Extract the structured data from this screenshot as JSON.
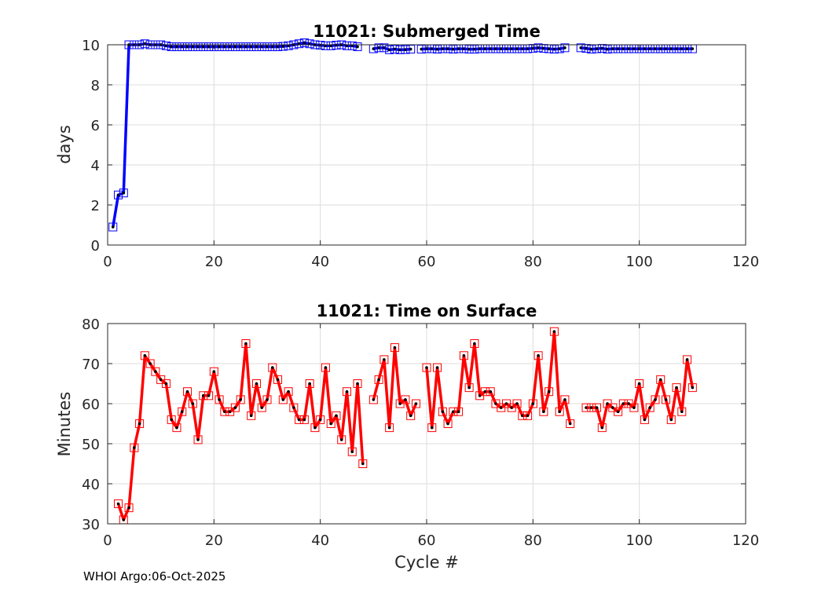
{
  "chart_data": [
    {
      "type": "line",
      "title": "11021: Submerged Time",
      "xlabel": "",
      "ylabel": "days",
      "xlim": [
        0,
        120
      ],
      "ylim": [
        0,
        10
      ],
      "xticks": [
        0,
        20,
        40,
        60,
        80,
        100,
        120
      ],
      "yticks": [
        0,
        2,
        4,
        6,
        8,
        10
      ],
      "grid": true,
      "color": "#0000ff",
      "marker": "square",
      "series": [
        {
          "name": "Submerged Time",
          "x": [
            1,
            2,
            3,
            4,
            5,
            6,
            7,
            8,
            9,
            10,
            11,
            12,
            13,
            14,
            15,
            16,
            17,
            18,
            19,
            20,
            21,
            22,
            23,
            24,
            25,
            26,
            27,
            28,
            29,
            30,
            31,
            32,
            33,
            34,
            35,
            36,
            37,
            38,
            39,
            40,
            41,
            42,
            43,
            44,
            45,
            46,
            47,
            50,
            51,
            52,
            53,
            54,
            55,
            56,
            57,
            59,
            60,
            61,
            62,
            63,
            64,
            65,
            66,
            67,
            68,
            69,
            70,
            71,
            72,
            73,
            74,
            75,
            76,
            77,
            78,
            79,
            80,
            81,
            82,
            83,
            84,
            85,
            86,
            89,
            90,
            91,
            92,
            93,
            94,
            95,
            96,
            97,
            98,
            99,
            100,
            101,
            102,
            103,
            104,
            105,
            106,
            107,
            108,
            109,
            110
          ],
          "values": [
            0.9,
            2.5,
            2.6,
            10.0,
            10.0,
            10.0,
            10.05,
            10.0,
            10.0,
            10.0,
            9.95,
            9.9,
            9.9,
            9.9,
            9.9,
            9.9,
            9.9,
            9.9,
            9.9,
            9.9,
            9.9,
            9.9,
            9.9,
            9.9,
            9.9,
            9.9,
            9.9,
            9.9,
            9.9,
            9.9,
            9.9,
            9.9,
            9.92,
            9.95,
            10.0,
            10.05,
            10.1,
            10.05,
            10.0,
            9.98,
            9.95,
            9.95,
            9.98,
            10.0,
            9.95,
            9.95,
            9.9,
            9.8,
            9.85,
            9.85,
            9.75,
            9.78,
            9.75,
            9.76,
            9.78,
            9.78,
            9.8,
            9.8,
            9.78,
            9.8,
            9.8,
            9.78,
            9.8,
            9.8,
            9.78,
            9.78,
            9.8,
            9.8,
            9.8,
            9.8,
            9.8,
            9.8,
            9.8,
            9.8,
            9.8,
            9.8,
            9.82,
            9.85,
            9.82,
            9.8,
            9.78,
            9.8,
            9.85,
            9.85,
            9.82,
            9.78,
            9.8,
            9.82,
            9.78,
            9.8,
            9.8,
            9.8,
            9.8,
            9.8,
            9.8,
            9.8,
            9.8,
            9.8,
            9.8,
            9.8,
            9.8,
            9.8,
            9.8,
            9.8,
            9.8
          ]
        }
      ]
    },
    {
      "type": "line",
      "title": "11021: Time on Surface",
      "xlabel": "Cycle #",
      "ylabel": "Minutes",
      "xlim": [
        0,
        120
      ],
      "ylim": [
        30,
        80
      ],
      "xticks": [
        0,
        20,
        40,
        60,
        80,
        100,
        120
      ],
      "yticks": [
        30,
        40,
        50,
        60,
        70,
        80
      ],
      "grid": true,
      "color": "#ff0000",
      "marker": "square",
      "series": [
        {
          "name": "Time on Surface",
          "x": [
            2,
            3,
            4,
            5,
            6,
            7,
            8,
            9,
            10,
            11,
            12,
            13,
            14,
            15,
            16,
            17,
            18,
            19,
            20,
            21,
            22,
            23,
            24,
            25,
            26,
            27,
            28,
            29,
            30,
            31,
            32,
            33,
            34,
            35,
            36,
            37,
            38,
            39,
            40,
            41,
            42,
            43,
            44,
            45,
            46,
            47,
            48,
            50,
            51,
            52,
            53,
            54,
            55,
            56,
            57,
            58,
            60,
            61,
            62,
            63,
            64,
            65,
            66,
            67,
            68,
            69,
            70,
            71,
            72,
            73,
            74,
            75,
            76,
            77,
            78,
            79,
            80,
            81,
            82,
            83,
            84,
            85,
            86,
            87,
            90,
            91,
            92,
            93,
            94,
            95,
            96,
            97,
            98,
            99,
            100,
            101,
            102,
            103,
            104,
            105,
            106,
            107,
            108,
            109,
            110
          ],
          "values": [
            35,
            31,
            34,
            49,
            55,
            72,
            70,
            68,
            66,
            65,
            56,
            54,
            58,
            63,
            60,
            51,
            62,
            62,
            68,
            61,
            58,
            58,
            59,
            61,
            75,
            57,
            65,
            59,
            61,
            69,
            66,
            61,
            63,
            59,
            56,
            56,
            65,
            54,
            56,
            69,
            55,
            57,
            51,
            63,
            48,
            65,
            45,
            61,
            66,
            71,
            54,
            74,
            60,
            61,
            57,
            60,
            69,
            54,
            69,
            58,
            55,
            58,
            58,
            72,
            64,
            75,
            62,
            63,
            63,
            60,
            59,
            60,
            59,
            60,
            57,
            57,
            60,
            72,
            58,
            63,
            78,
            58,
            61,
            55,
            59,
            59,
            59,
            54,
            60,
            59,
            58,
            60,
            60,
            59,
            65,
            56,
            59,
            61,
            66,
            61,
            56,
            64,
            58,
            71,
            64
          ]
        }
      ]
    }
  ],
  "footer": "WHOI Argo:06-Oct-2025"
}
